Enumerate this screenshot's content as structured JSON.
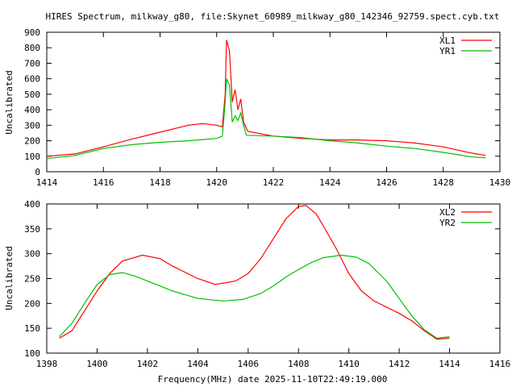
{
  "title": "HIRES Spectrum, milkway_g80, file:Skynet_60989_milkway_g80_142346_92759.spect.cyb.txt",
  "xlabel": "Frequency(MHz) date 2025-11-10T22:49:19.000",
  "chart_data": [
    {
      "type": "line",
      "ylabel": "Uncalibrated",
      "xlim": [
        1414,
        1430
      ],
      "ylim": [
        0,
        900
      ],
      "xticks": [
        1414,
        1416,
        1418,
        1420,
        1422,
        1424,
        1426,
        1428,
        1430
      ],
      "yticks": [
        0,
        100,
        200,
        300,
        400,
        500,
        600,
        700,
        800,
        900
      ],
      "legend": "top-right",
      "series": [
        {
          "name": "XL1",
          "color": "#ff0000",
          "x": [
            1414,
            1415,
            1416,
            1417,
            1418,
            1419,
            1419.5,
            1420,
            1420.2,
            1420.3,
            1420.35,
            1420.45,
            1420.55,
            1420.65,
            1420.75,
            1420.85,
            1420.95,
            1421.1,
            1422,
            1423,
            1424,
            1425,
            1426,
            1427,
            1428,
            1429,
            1429.5
          ],
          "y": [
            100,
            115,
            160,
            210,
            255,
            300,
            310,
            300,
            290,
            500,
            850,
            780,
            450,
            530,
            400,
            470,
            320,
            260,
            230,
            215,
            205,
            205,
            200,
            185,
            160,
            120,
            105
          ]
        },
        {
          "name": "YR1",
          "color": "#00c000",
          "x": [
            1414,
            1415,
            1416,
            1417,
            1418,
            1419,
            1420,
            1420.2,
            1420.3,
            1420.35,
            1420.45,
            1420.55,
            1420.65,
            1420.75,
            1420.85,
            1420.95,
            1421.05,
            1422,
            1423,
            1424,
            1425,
            1426,
            1427,
            1428,
            1429,
            1429.5
          ],
          "y": [
            85,
            105,
            150,
            175,
            190,
            200,
            215,
            230,
            450,
            600,
            560,
            320,
            360,
            330,
            380,
            300,
            235,
            230,
            220,
            200,
            185,
            165,
            150,
            125,
            95,
            90
          ]
        }
      ]
    },
    {
      "type": "line",
      "ylabel": "Uncalibrated",
      "xlim": [
        1398,
        1416
      ],
      "ylim": [
        100,
        400
      ],
      "xticks": [
        1398,
        1400,
        1402,
        1404,
        1406,
        1408,
        1410,
        1412,
        1414,
        1416
      ],
      "yticks": [
        100,
        150,
        200,
        250,
        300,
        350,
        400
      ],
      "legend": "top-right",
      "series": [
        {
          "name": "XL2",
          "color": "#ff0000",
          "x": [
            1398.5,
            1399,
            1399.5,
            1400,
            1400.5,
            1401,
            1401.8,
            1402.5,
            1403,
            1404,
            1404.7,
            1405.5,
            1406,
            1406.5,
            1407,
            1407.5,
            1408,
            1408.3,
            1408.7,
            1409,
            1409.5,
            1410,
            1410.5,
            1411,
            1412,
            1412.5,
            1413,
            1413.5,
            1414
          ],
          "y": [
            130,
            145,
            185,
            225,
            260,
            285,
            297,
            290,
            275,
            250,
            238,
            245,
            260,
            290,
            330,
            370,
            395,
            397,
            380,
            355,
            310,
            260,
            225,
            205,
            180,
            165,
            145,
            128,
            130
          ]
        },
        {
          "name": "YR2",
          "color": "#00c000",
          "x": [
            1398.5,
            1399,
            1399.5,
            1400,
            1400.5,
            1401,
            1401.5,
            1402,
            1403,
            1404,
            1405,
            1405.8,
            1406.5,
            1407,
            1407.5,
            1408,
            1408.5,
            1409,
            1409.7,
            1410.3,
            1410.8,
            1411.5,
            1412,
            1412.5,
            1413,
            1413.5,
            1414
          ],
          "y": [
            133,
            160,
            200,
            238,
            258,
            262,
            255,
            245,
            225,
            210,
            205,
            208,
            220,
            235,
            253,
            268,
            282,
            292,
            297,
            293,
            280,
            245,
            210,
            175,
            147,
            130,
            133
          ]
        }
      ]
    }
  ]
}
